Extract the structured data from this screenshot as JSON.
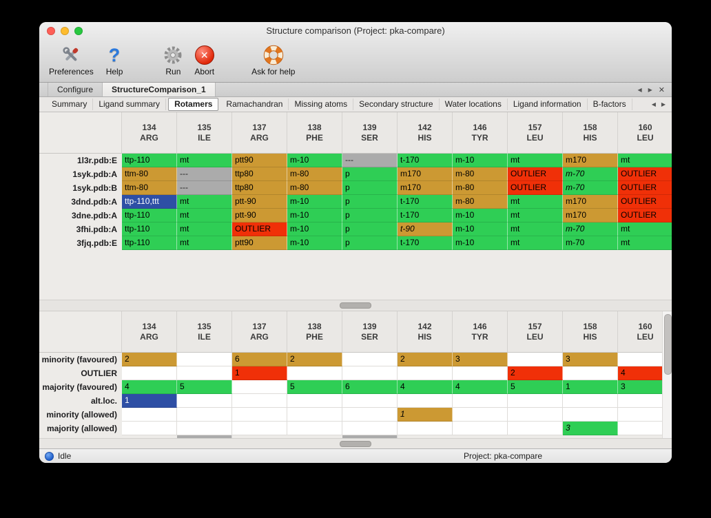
{
  "window": {
    "title": "Structure comparison (Project: pka-compare)"
  },
  "toolbar": {
    "buttons": [
      {
        "id": "preferences",
        "label": "Preferences"
      },
      {
        "id": "help",
        "label": "Help"
      },
      {
        "id": "run",
        "label": "Run"
      },
      {
        "id": "abort",
        "label": "Abort"
      },
      {
        "id": "ask-for-help",
        "label": "Ask for help"
      }
    ]
  },
  "icons": {
    "prev": "◀",
    "next": "▶",
    "close_tab": "✕",
    "abort_x": "✕",
    "help_mark": "?"
  },
  "doc_tabs": {
    "tabs": [
      {
        "label": "Configure"
      },
      {
        "label": "StructureComparison_1"
      }
    ],
    "active": "StructureComparison_1"
  },
  "sub_tabs": {
    "tabs": [
      "Summary",
      "Ligand summary",
      "Rotamers",
      "Ramachandran",
      "Missing atoms",
      "Secondary structure",
      "Water locations",
      "Ligand information",
      "B-factors"
    ],
    "active": "Rotamers"
  },
  "columns": [
    {
      "num": "134",
      "name": "ARG"
    },
    {
      "num": "135",
      "name": "ILE"
    },
    {
      "num": "137",
      "name": "ARG"
    },
    {
      "num": "138",
      "name": "PHE"
    },
    {
      "num": "139",
      "name": "SER"
    },
    {
      "num": "142",
      "name": "HIS"
    },
    {
      "num": "146",
      "name": "TYR"
    },
    {
      "num": "157",
      "name": "LEU"
    },
    {
      "num": "158",
      "name": "HIS"
    },
    {
      "num": "160",
      "name": "LEU"
    }
  ],
  "legend_colors": {
    "majority": "#2fce55",
    "minority": "#cc9933",
    "outlier": "#f03008",
    "missing": "#ababab",
    "alt_loc": "#2e4fa5"
  },
  "structures_table": {
    "rows": [
      {
        "label": "1l3r.pdb:E",
        "cells": [
          {
            "t": "ttp-110",
            "c": "g"
          },
          {
            "t": "mt",
            "c": "g"
          },
          {
            "t": "ptt90",
            "c": "n"
          },
          {
            "t": "m-10",
            "c": "g"
          },
          {
            "t": "---",
            "c": "x"
          },
          {
            "t": "t-170",
            "c": "g"
          },
          {
            "t": "m-10",
            "c": "g"
          },
          {
            "t": "mt",
            "c": "g"
          },
          {
            "t": "m170",
            "c": "n"
          },
          {
            "t": "mt",
            "c": "g"
          }
        ]
      },
      {
        "label": "1syk.pdb:A",
        "cells": [
          {
            "t": "ttm-80",
            "c": "n"
          },
          {
            "t": "---",
            "c": "x"
          },
          {
            "t": "ttp80",
            "c": "n"
          },
          {
            "t": "m-80",
            "c": "n"
          },
          {
            "t": "p",
            "c": "g"
          },
          {
            "t": "m170",
            "c": "n"
          },
          {
            "t": "m-80",
            "c": "n"
          },
          {
            "t": "OUTLIER",
            "c": "r"
          },
          {
            "t": "m-70",
            "c": "g",
            "i": true
          },
          {
            "t": "OUTLIER",
            "c": "r"
          }
        ]
      },
      {
        "label": "1syk.pdb:B",
        "cells": [
          {
            "t": "ttm-80",
            "c": "n"
          },
          {
            "t": "---",
            "c": "x"
          },
          {
            "t": "ttp80",
            "c": "n"
          },
          {
            "t": "m-80",
            "c": "n"
          },
          {
            "t": "p",
            "c": "g"
          },
          {
            "t": "m170",
            "c": "n"
          },
          {
            "t": "m-80",
            "c": "n"
          },
          {
            "t": "OUTLIER",
            "c": "r"
          },
          {
            "t": "m-70",
            "c": "g",
            "i": true
          },
          {
            "t": "OUTLIER",
            "c": "r"
          }
        ]
      },
      {
        "label": "3dnd.pdb:A",
        "cells": [
          {
            "t": "ttp-110,ttt",
            "c": "b"
          },
          {
            "t": "mt",
            "c": "g"
          },
          {
            "t": "ptt-90",
            "c": "n"
          },
          {
            "t": "m-10",
            "c": "g"
          },
          {
            "t": "p",
            "c": "g"
          },
          {
            "t": "t-170",
            "c": "g"
          },
          {
            "t": "m-80",
            "c": "n"
          },
          {
            "t": "mt",
            "c": "g"
          },
          {
            "t": "m170",
            "c": "n"
          },
          {
            "t": "OUTLIER",
            "c": "r"
          }
        ]
      },
      {
        "label": "3dne.pdb:A",
        "cells": [
          {
            "t": "ttp-110",
            "c": "g"
          },
          {
            "t": "mt",
            "c": "g"
          },
          {
            "t": "ptt-90",
            "c": "n"
          },
          {
            "t": "m-10",
            "c": "g"
          },
          {
            "t": "p",
            "c": "g"
          },
          {
            "t": "t-170",
            "c": "g"
          },
          {
            "t": "m-10",
            "c": "g"
          },
          {
            "t": "mt",
            "c": "g"
          },
          {
            "t": "m170",
            "c": "n"
          },
          {
            "t": "OUTLIER",
            "c": "r"
          }
        ]
      },
      {
        "label": "3fhi.pdb:A",
        "cells": [
          {
            "t": "ttp-110",
            "c": "g"
          },
          {
            "t": "mt",
            "c": "g"
          },
          {
            "t": "OUTLIER",
            "c": "r"
          },
          {
            "t": "m-10",
            "c": "g"
          },
          {
            "t": "p",
            "c": "g"
          },
          {
            "t": "t-90",
            "c": "n",
            "i": true
          },
          {
            "t": "m-10",
            "c": "g"
          },
          {
            "t": "mt",
            "c": "g"
          },
          {
            "t": "m-70",
            "c": "g",
            "i": true
          },
          {
            "t": "mt",
            "c": "g"
          }
        ]
      },
      {
        "label": "3fjq.pdb:E",
        "cells": [
          {
            "t": "ttp-110",
            "c": "g"
          },
          {
            "t": "mt",
            "c": "g"
          },
          {
            "t": "ptt90",
            "c": "n"
          },
          {
            "t": "m-10",
            "c": "g"
          },
          {
            "t": "p",
            "c": "g"
          },
          {
            "t": "t-170",
            "c": "g"
          },
          {
            "t": "m-10",
            "c": "g"
          },
          {
            "t": "mt",
            "c": "g"
          },
          {
            "t": "m-70",
            "c": "g"
          },
          {
            "t": "mt",
            "c": "g"
          }
        ]
      }
    ]
  },
  "summary_table": {
    "rows": [
      {
        "label": "minority (favoured)",
        "cells": [
          {
            "t": "2",
            "c": "n"
          },
          {
            "c": "w"
          },
          {
            "t": "6",
            "c": "n"
          },
          {
            "t": "2",
            "c": "n"
          },
          {
            "c": "w"
          },
          {
            "t": "2",
            "c": "n"
          },
          {
            "t": "3",
            "c": "n"
          },
          {
            "c": "w"
          },
          {
            "t": "3",
            "c": "n"
          },
          {
            "c": "w"
          }
        ]
      },
      {
        "label": "OUTLIER",
        "cells": [
          {
            "c": "w"
          },
          {
            "c": "w"
          },
          {
            "t": "1",
            "c": "r"
          },
          {
            "c": "w"
          },
          {
            "c": "w"
          },
          {
            "c": "w"
          },
          {
            "c": "w"
          },
          {
            "t": "2",
            "c": "r"
          },
          {
            "c": "w"
          },
          {
            "t": "4",
            "c": "r"
          }
        ]
      },
      {
        "label": "majority (favoured)",
        "cells": [
          {
            "t": "4",
            "c": "g"
          },
          {
            "t": "5",
            "c": "g"
          },
          {
            "c": "w"
          },
          {
            "t": "5",
            "c": "g"
          },
          {
            "t": "6",
            "c": "g"
          },
          {
            "t": "4",
            "c": "g"
          },
          {
            "t": "4",
            "c": "g"
          },
          {
            "t": "5",
            "c": "g"
          },
          {
            "t": "1",
            "c": "g"
          },
          {
            "t": "3",
            "c": "g"
          }
        ]
      },
      {
        "label": "alt.loc.",
        "cells": [
          {
            "t": "1",
            "c": "b"
          },
          {
            "c": "w"
          },
          {
            "c": "w"
          },
          {
            "c": "w"
          },
          {
            "c": "w"
          },
          {
            "c": "w"
          },
          {
            "c": "w"
          },
          {
            "c": "w"
          },
          {
            "c": "w"
          },
          {
            "c": "w"
          }
        ]
      },
      {
        "label": "minority (allowed)",
        "cells": [
          {
            "c": "w"
          },
          {
            "c": "w"
          },
          {
            "c": "w"
          },
          {
            "c": "w"
          },
          {
            "c": "w"
          },
          {
            "t": "1",
            "c": "n",
            "i": true
          },
          {
            "c": "w"
          },
          {
            "c": "w"
          },
          {
            "c": "w"
          },
          {
            "c": "w"
          }
        ]
      },
      {
        "label": "majority (allowed)",
        "cells": [
          {
            "c": "w"
          },
          {
            "c": "w"
          },
          {
            "c": "w"
          },
          {
            "c": "w"
          },
          {
            "c": "w"
          },
          {
            "c": "w"
          },
          {
            "c": "w"
          },
          {
            "c": "w"
          },
          {
            "t": "3",
            "c": "g",
            "i": true
          },
          {
            "c": "w"
          }
        ]
      }
    ],
    "clipped_row": {
      "gray_columns": [
        1,
        4
      ]
    }
  },
  "status_bar": {
    "state": "Idle",
    "project": "Project: pka-compare"
  }
}
